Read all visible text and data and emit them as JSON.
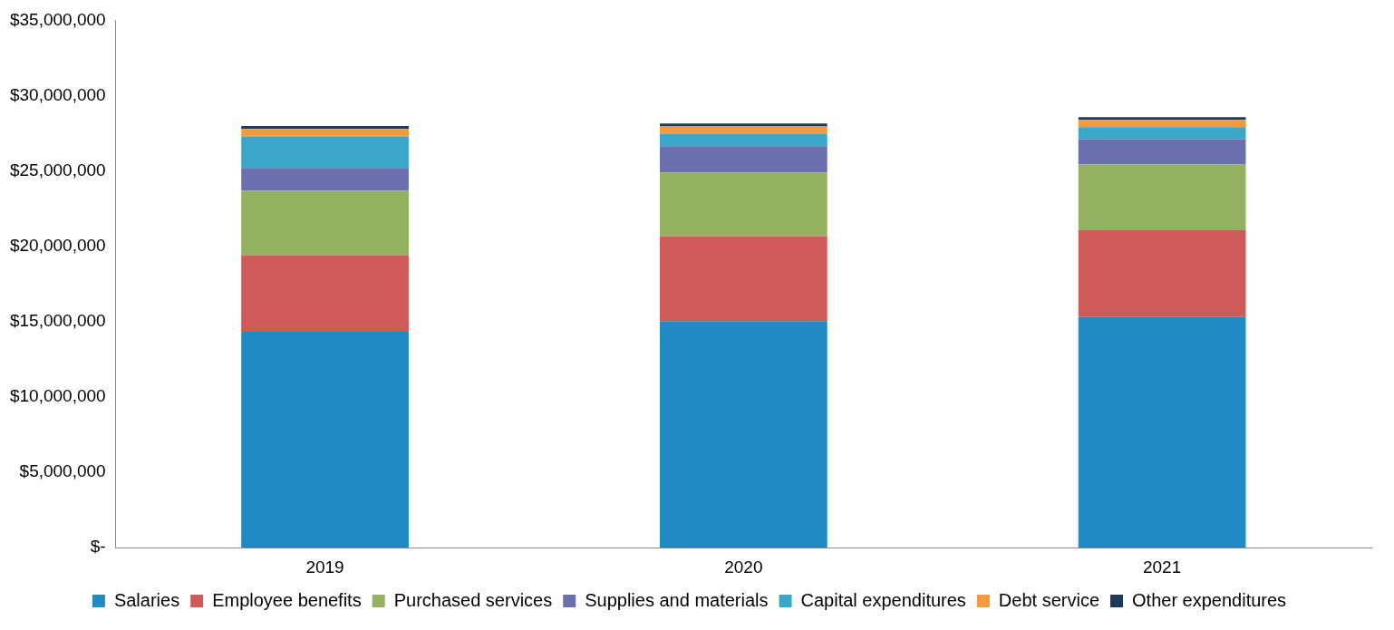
{
  "chart_data": {
    "type": "bar",
    "stacked": true,
    "categories": [
      "2019",
      "2020",
      "2021"
    ],
    "series": [
      {
        "name": "Salaries",
        "color": "#1f8ac4",
        "values": [
          14330000,
          15040000,
          15300000
        ]
      },
      {
        "name": "Employee benefits",
        "color": "#d05a5a",
        "values": [
          5090000,
          5640000,
          5760000
        ]
      },
      {
        "name": "Purchased services",
        "color": "#94b160",
        "values": [
          4260000,
          4200000,
          4370000
        ]
      },
      {
        "name": "Supplies and materials",
        "color": "#6b6fae",
        "values": [
          1530000,
          1760000,
          1690000
        ]
      },
      {
        "name": "Capital expenditures",
        "color": "#3aa6c8",
        "values": [
          2080000,
          830000,
          790000
        ]
      },
      {
        "name": "Debt service",
        "color": "#f39a3c",
        "values": [
          500000,
          480000,
          480000
        ]
      },
      {
        "name": "Other expenditures",
        "color": "#1b3a5c",
        "values": [
          200000,
          200000,
          180000
        ]
      }
    ],
    "ylim": [
      0,
      35000000
    ],
    "yticks": [
      {
        "value": 0,
        "label": "$-"
      },
      {
        "value": 5000000,
        "label": "$5,000,000"
      },
      {
        "value": 10000000,
        "label": "$10,000,000"
      },
      {
        "value": 15000000,
        "label": "$15,000,000"
      },
      {
        "value": 20000000,
        "label": "$20,000,000"
      },
      {
        "value": 25000000,
        "label": "$25,000,000"
      },
      {
        "value": 30000000,
        "label": "$30,000,000"
      },
      {
        "value": 35000000,
        "label": "$35,000,000"
      }
    ],
    "grid": false,
    "legend": "bottom"
  }
}
